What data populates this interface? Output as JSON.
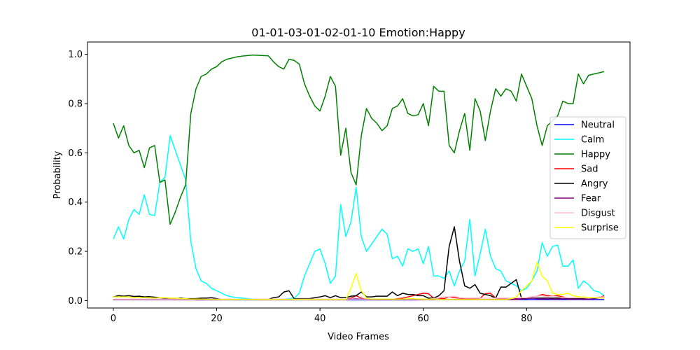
{
  "chart_data": {
    "type": "line",
    "title": "01-01-03-01-02-01-10 Emotion:Happy",
    "xlabel": "Video Frames",
    "ylabel": "Probability",
    "xlim": [
      -5,
      100
    ],
    "ylim": [
      -0.03,
      1.05
    ],
    "xticks": [
      "0",
      "20",
      "40",
      "60",
      "80"
    ],
    "yticks": [
      "0.0",
      "0.2",
      "0.4",
      "0.6",
      "0.8",
      "1.0"
    ],
    "grid": false,
    "legend_position": "center-right",
    "colors": {
      "Neutral": "#0000ff",
      "Calm": "#00ffff",
      "Happy": "#008000",
      "Sad": "#ff0000",
      "Angry": "#000000",
      "Fear": "#800080",
      "Disgust": "#ffc0cb",
      "Surprise": "#ffff00"
    },
    "series": [
      {
        "name": "Neutral",
        "values": [
          0.004,
          0.004,
          0.004,
          0.004,
          0.004,
          0.004,
          0.004,
          0.004,
          0.004,
          0.004,
          0.004,
          0.004,
          0.004,
          0.004,
          0.004,
          0.004,
          0.003,
          0.003,
          0.003,
          0.003,
          0.003,
          0.003,
          0.003,
          0.003,
          0.003,
          0.003,
          0.003,
          0.003,
          0.003,
          0.003,
          0.003,
          0.003,
          0.003,
          0.003,
          0.003,
          0.003,
          0.003,
          0.003,
          0.003,
          0.003,
          0.003,
          0.003,
          0.003,
          0.003,
          0.003,
          0.003,
          0.003,
          0.003,
          0.003,
          0.003,
          0.003,
          0.003,
          0.003,
          0.003,
          0.003,
          0.003,
          0.003,
          0.003,
          0.003,
          0.003,
          0.004,
          0.006,
          0.004,
          0.004,
          0.004,
          0.004,
          0.004,
          0.004,
          0.004,
          0.004,
          0.004,
          0.004,
          0.004,
          0.004,
          0.004,
          0.004,
          0.004,
          0.004,
          0.004,
          0.004,
          0.004,
          0.004,
          0.004,
          0.004,
          0.004,
          0.004,
          0.004,
          0.004,
          0.004,
          0.004,
          0.004,
          0.004,
          0.004,
          0.004,
          0.004,
          0.004
        ]
      },
      {
        "name": "Calm",
        "values": [
          0.25,
          0.3,
          0.25,
          0.33,
          0.37,
          0.35,
          0.43,
          0.35,
          0.345,
          0.48,
          0.5,
          0.67,
          0.61,
          0.55,
          0.49,
          0.24,
          0.13,
          0.08,
          0.07,
          0.05,
          0.04,
          0.03,
          0.02,
          0.015,
          0.012,
          0.01,
          0.008,
          0.006,
          0.005,
          0.005,
          0.005,
          0.005,
          0.005,
          0.006,
          0.008,
          0.01,
          0.03,
          0.1,
          0.15,
          0.2,
          0.21,
          0.15,
          0.07,
          0.1,
          0.39,
          0.26,
          0.32,
          0.46,
          0.26,
          0.2,
          0.23,
          0.26,
          0.29,
          0.27,
          0.17,
          0.18,
          0.14,
          0.21,
          0.2,
          0.21,
          0.15,
          0.22,
          0.1,
          0.1,
          0.09,
          0.12,
          0.06,
          0.12,
          0.16,
          0.33,
          0.1,
          0.19,
          0.29,
          0.18,
          0.13,
          0.12,
          0.08,
          0.07,
          0.06,
          0.04,
          0.05,
          0.08,
          0.12,
          0.235,
          0.18,
          0.22,
          0.225,
          0.14,
          0.14,
          0.165,
          0.05,
          0.08,
          0.065,
          0.04,
          0.035,
          0.02
        ]
      },
      {
        "name": "Happy",
        "values": [
          0.72,
          0.66,
          0.71,
          0.63,
          0.6,
          0.61,
          0.54,
          0.62,
          0.63,
          0.48,
          0.49,
          0.31,
          0.36,
          0.42,
          0.47,
          0.76,
          0.86,
          0.91,
          0.92,
          0.94,
          0.95,
          0.97,
          0.98,
          0.985,
          0.99,
          0.993,
          0.995,
          0.997,
          0.996,
          0.995,
          0.994,
          0.97,
          0.95,
          0.94,
          0.98,
          0.975,
          0.96,
          0.88,
          0.83,
          0.79,
          0.77,
          0.83,
          0.91,
          0.87,
          0.59,
          0.7,
          0.52,
          0.47,
          0.67,
          0.78,
          0.74,
          0.72,
          0.69,
          0.71,
          0.78,
          0.79,
          0.82,
          0.76,
          0.75,
          0.755,
          0.8,
          0.71,
          0.87,
          0.85,
          0.85,
          0.63,
          0.6,
          0.69,
          0.76,
          0.61,
          0.82,
          0.77,
          0.65,
          0.77,
          0.86,
          0.83,
          0.86,
          0.85,
          0.81,
          0.92,
          0.87,
          0.82,
          0.71,
          0.63,
          0.71,
          0.73,
          0.75,
          0.81,
          0.8,
          0.8,
          0.92,
          0.88,
          0.915,
          0.92,
          0.925,
          0.93
        ]
      },
      {
        "name": "Sad",
        "values": [
          0.005,
          0.005,
          0.005,
          0.005,
          0.005,
          0.005,
          0.005,
          0.005,
          0.005,
          0.005,
          0.005,
          0.005,
          0.005,
          0.005,
          0.005,
          0.005,
          0.005,
          0.005,
          0.005,
          0.005,
          0.005,
          0.005,
          0.005,
          0.005,
          0.005,
          0.005,
          0.005,
          0.005,
          0.005,
          0.005,
          0.005,
          0.005,
          0.005,
          0.005,
          0.005,
          0.005,
          0.005,
          0.005,
          0.005,
          0.005,
          0.005,
          0.005,
          0.005,
          0.005,
          0.005,
          0.005,
          0.01,
          0.02,
          0.01,
          0.005,
          0.005,
          0.005,
          0.005,
          0.005,
          0.005,
          0.008,
          0.01,
          0.015,
          0.02,
          0.025,
          0.03,
          0.028,
          0.01,
          0.01,
          0.008,
          0.015,
          0.012,
          0.01,
          0.008,
          0.008,
          0.008,
          0.01,
          0.028,
          0.03,
          0.01,
          0.008,
          0.008,
          0.005,
          0.005,
          0.008,
          0.012,
          0.015,
          0.018,
          0.025,
          0.02,
          0.018,
          0.02,
          0.015,
          0.01,
          0.01,
          0.01,
          0.008,
          0.008,
          0.01,
          0.012,
          0.02
        ]
      },
      {
        "name": "Angry",
        "values": [
          0.015,
          0.02,
          0.018,
          0.02,
          0.017,
          0.018,
          0.015,
          0.016,
          0.014,
          0.012,
          0.01,
          0.008,
          0.008,
          0.01,
          0.008,
          0.008,
          0.008,
          0.01,
          0.01,
          0.012,
          0.008,
          0.005,
          0.005,
          0.005,
          0.005,
          0.005,
          0.005,
          0.005,
          0.005,
          0.005,
          0.005,
          0.012,
          0.015,
          0.035,
          0.04,
          0.008,
          0.008,
          0.008,
          0.008,
          0.012,
          0.015,
          0.02,
          0.012,
          0.02,
          0.012,
          0.012,
          0.018,
          0.02,
          0.035,
          0.015,
          0.015,
          0.018,
          0.018,
          0.018,
          0.035,
          0.02,
          0.03,
          0.025,
          0.025,
          0.02,
          0.02,
          0.01,
          0.01,
          0.02,
          0.04,
          0.22,
          0.3,
          0.16,
          0.06,
          0.05,
          0.065,
          0.03,
          0.025,
          0.02,
          0.01,
          0.055,
          0.055,
          0.07,
          0.085,
          0.01,
          0.01,
          0.01,
          0.01,
          0.01,
          0.01,
          0.01,
          0.01,
          0.01,
          0.01,
          0.01,
          0.01,
          0.01,
          0.01,
          0.01,
          0.012,
          0.015
        ]
      },
      {
        "name": "Fear",
        "values": [
          0.004,
          0.004,
          0.004,
          0.004,
          0.004,
          0.004,
          0.004,
          0.004,
          0.004,
          0.004,
          0.004,
          0.004,
          0.004,
          0.004,
          0.004,
          0.004,
          0.004,
          0.004,
          0.004,
          0.004,
          0.004,
          0.004,
          0.004,
          0.004,
          0.004,
          0.004,
          0.004,
          0.004,
          0.004,
          0.004,
          0.004,
          0.004,
          0.004,
          0.004,
          0.004,
          0.004,
          0.004,
          0.004,
          0.004,
          0.004,
          0.004,
          0.004,
          0.004,
          0.004,
          0.004,
          0.004,
          0.006,
          0.008,
          0.006,
          0.004,
          0.004,
          0.004,
          0.004,
          0.004,
          0.004,
          0.004,
          0.004,
          0.004,
          0.004,
          0.004,
          0.004,
          0.004,
          0.004,
          0.004,
          0.004,
          0.004,
          0.004,
          0.004,
          0.004,
          0.004,
          0.004,
          0.004,
          0.004,
          0.004,
          0.004,
          0.004,
          0.004,
          0.004,
          0.008,
          0.006,
          0.008,
          0.01,
          0.008,
          0.006,
          0.008,
          0.006,
          0.006,
          0.008,
          0.006,
          0.006,
          0.006,
          0.006,
          0.006,
          0.008,
          0.01,
          0.015
        ]
      },
      {
        "name": "Disgust",
        "values": [
          0.006,
          0.006,
          0.006,
          0.006,
          0.006,
          0.006,
          0.006,
          0.006,
          0.006,
          0.006,
          0.006,
          0.006,
          0.006,
          0.006,
          0.006,
          0.006,
          0.006,
          0.006,
          0.006,
          0.006,
          0.006,
          0.006,
          0.006,
          0.006,
          0.006,
          0.006,
          0.006,
          0.006,
          0.006,
          0.006,
          0.006,
          0.006,
          0.006,
          0.006,
          0.006,
          0.006,
          0.006,
          0.006,
          0.006,
          0.006,
          0.006,
          0.006,
          0.006,
          0.006,
          0.006,
          0.006,
          0.006,
          0.006,
          0.006,
          0.006,
          0.006,
          0.006,
          0.006,
          0.006,
          0.006,
          0.006,
          0.006,
          0.006,
          0.006,
          0.006,
          0.006,
          0.006,
          0.008,
          0.012,
          0.015,
          0.015,
          0.018,
          0.012,
          0.01,
          0.01,
          0.01,
          0.01,
          0.01,
          0.01,
          0.01,
          0.01,
          0.01,
          0.01,
          0.015,
          0.012,
          0.012,
          0.015,
          0.018,
          0.02,
          0.015,
          0.018,
          0.015,
          0.012,
          0.012,
          0.012,
          0.012,
          0.012,
          0.01,
          0.012,
          0.015,
          0.015
        ]
      },
      {
        "name": "Surprise",
        "values": [
          0.015,
          0.015,
          0.015,
          0.015,
          0.012,
          0.012,
          0.012,
          0.012,
          0.01,
          0.012,
          0.012,
          0.01,
          0.01,
          0.008,
          0.008,
          0.006,
          0.006,
          0.006,
          0.005,
          0.005,
          0.005,
          0.004,
          0.004,
          0.004,
          0.004,
          0.004,
          0.004,
          0.004,
          0.004,
          0.004,
          0.004,
          0.004,
          0.004,
          0.004,
          0.004,
          0.004,
          0.004,
          0.004,
          0.004,
          0.004,
          0.004,
          0.004,
          0.004,
          0.004,
          0.004,
          0.004,
          0.05,
          0.11,
          0.04,
          0.01,
          0.006,
          0.006,
          0.006,
          0.006,
          0.006,
          0.006,
          0.006,
          0.008,
          0.008,
          0.006,
          0.006,
          0.006,
          0.006,
          0.004,
          0.004,
          0.004,
          0.004,
          0.004,
          0.004,
          0.004,
          0.004,
          0.004,
          0.004,
          0.004,
          0.004,
          0.004,
          0.004,
          0.008,
          0.015,
          0.04,
          0.06,
          0.08,
          0.155,
          0.1,
          0.08,
          0.03,
          0.025,
          0.025,
          0.03,
          0.02,
          0.015,
          0.015,
          0.012,
          0.012,
          0.01,
          0.01
        ]
      }
    ]
  }
}
